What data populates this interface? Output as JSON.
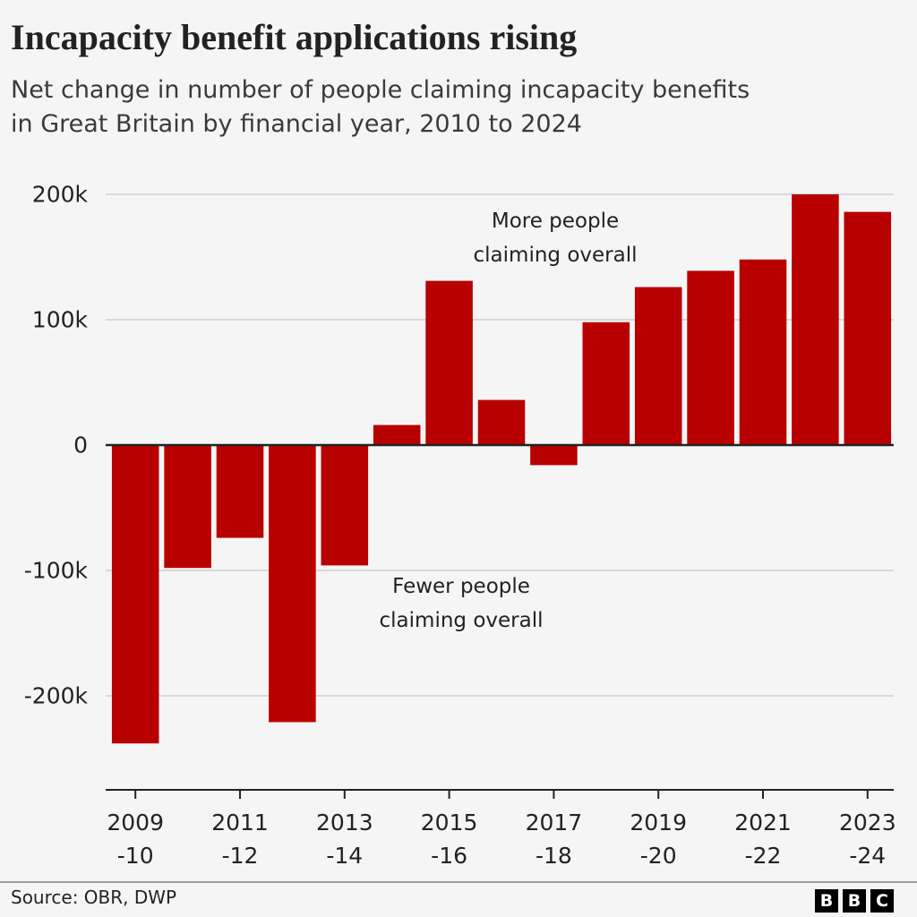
{
  "chart_data": {
    "type": "bar",
    "title": "Incapacity benefit applications rising",
    "subtitle": "Net change in number of people claiming incapacity benefits\nin Great Britain by financial year, 2010 to 2024",
    "categories": [
      "2009\n-10",
      null,
      "2011\n-12",
      null,
      "2013\n-14",
      null,
      "2015\n-16",
      null,
      "2017\n-18",
      null,
      "2019\n-20",
      null,
      "2021\n-22",
      null,
      "2023\n-24"
    ],
    "values": [
      -238000,
      -98000,
      -74000,
      -221000,
      -96000,
      16000,
      131000,
      36000,
      -16000,
      98000,
      126000,
      139000,
      148000,
      200000,
      186000
    ],
    "color": "#b80000",
    "ylim": [
      -275000,
      205000
    ],
    "yticks": [
      {
        "value": 200000,
        "label": "200k"
      },
      {
        "value": 100000,
        "label": "100k"
      },
      0,
      {
        "value": -100000,
        "label": "-100k"
      },
      {
        "value": -200000,
        "label": "-200k"
      }
    ],
    "grid": true,
    "annotations": [
      "More people\nclaiming overall",
      "Fewer people\nclaiming overall"
    ],
    "source": "Source: OBR, DWP",
    "logo": [
      "B",
      "B",
      "C"
    ]
  }
}
